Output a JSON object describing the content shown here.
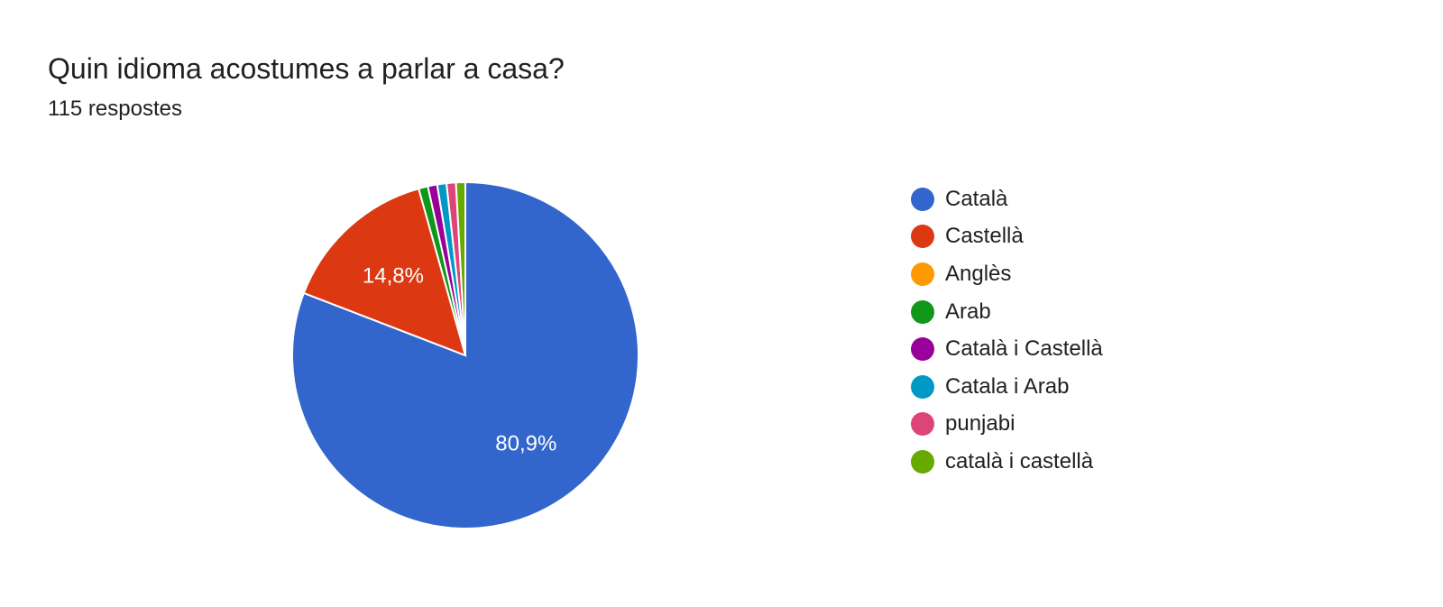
{
  "question": {
    "title": "Quin idioma acostumes a parlar a casa?",
    "response_count": "115 respostes"
  },
  "chart_data": {
    "type": "pie",
    "title": "Quin idioma acostumes a parlar a casa?",
    "subtitle": "115 respostes",
    "legend_position": "right",
    "slices": [
      {
        "label": "Català",
        "value": 80.9,
        "value_label": "80,9%",
        "color": "#3366cc"
      },
      {
        "label": "Castellà",
        "value": 14.8,
        "value_label": "14,8%",
        "color": "#dc3912"
      },
      {
        "label": "Anglès",
        "value": 0,
        "value_label": "",
        "color": "#ff9900"
      },
      {
        "label": "Arab",
        "value": 0.87,
        "value_label": "",
        "color": "#109618"
      },
      {
        "label": "Català i Castellà",
        "value": 0.87,
        "value_label": "",
        "color": "#990099"
      },
      {
        "label": "Catala i Arab",
        "value": 0.87,
        "value_label": "",
        "color": "#0099c6"
      },
      {
        "label": "punjabi",
        "value": 0.87,
        "value_label": "",
        "color": "#dd4477"
      },
      {
        "label": "català i castellà",
        "value": 0.87,
        "value_label": "",
        "color": "#66aa00"
      }
    ]
  }
}
